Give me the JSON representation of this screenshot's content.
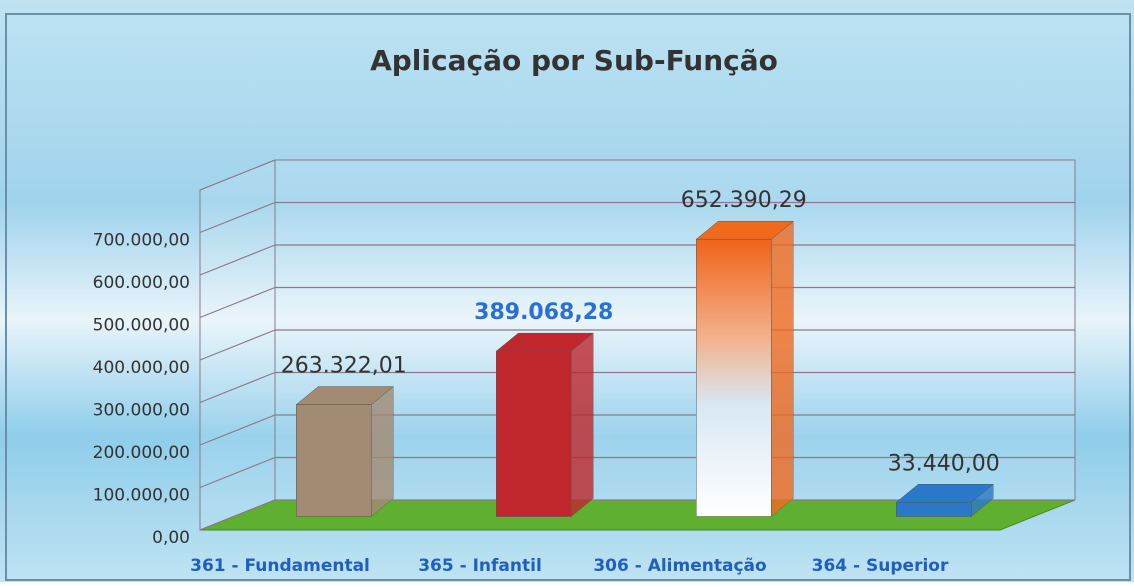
{
  "chart_data": {
    "type": "bar3d",
    "title": "Aplicação por Sub-Função",
    "categories": [
      "361 - Fundamental",
      "365 - Infantil",
      "306 - Alimentação",
      "364 -  Superior"
    ],
    "values": [
      263322.01,
      389068.28,
      652390.29,
      33440
    ],
    "value_labels": [
      "263.322,01",
      "389.068,28",
      "652.390,29",
      "33.440,00"
    ],
    "colors": [
      "#a38a72",
      "#c0272d",
      "#f06a1e",
      "#2a78c8"
    ],
    "value_label_colors": [
      "#333333",
      "#2a6fd6",
      "#333333",
      "#333333"
    ],
    "ylim": [
      0,
      800000
    ],
    "yticks": [
      {
        "value": 0,
        "label": "0,00"
      },
      {
        "value": 100000,
        "label": "100.000,00"
      },
      {
        "value": 200000,
        "label": "200.000,00"
      },
      {
        "value": 300000,
        "label": "300.000,00"
      },
      {
        "value": 400000,
        "label": "400.000,00"
      },
      {
        "value": 500000,
        "label": "500.000,00"
      },
      {
        "value": 600000,
        "label": "600.000,00"
      },
      {
        "value": 700000,
        "label": "700.000,00"
      }
    ],
    "grid": true
  }
}
